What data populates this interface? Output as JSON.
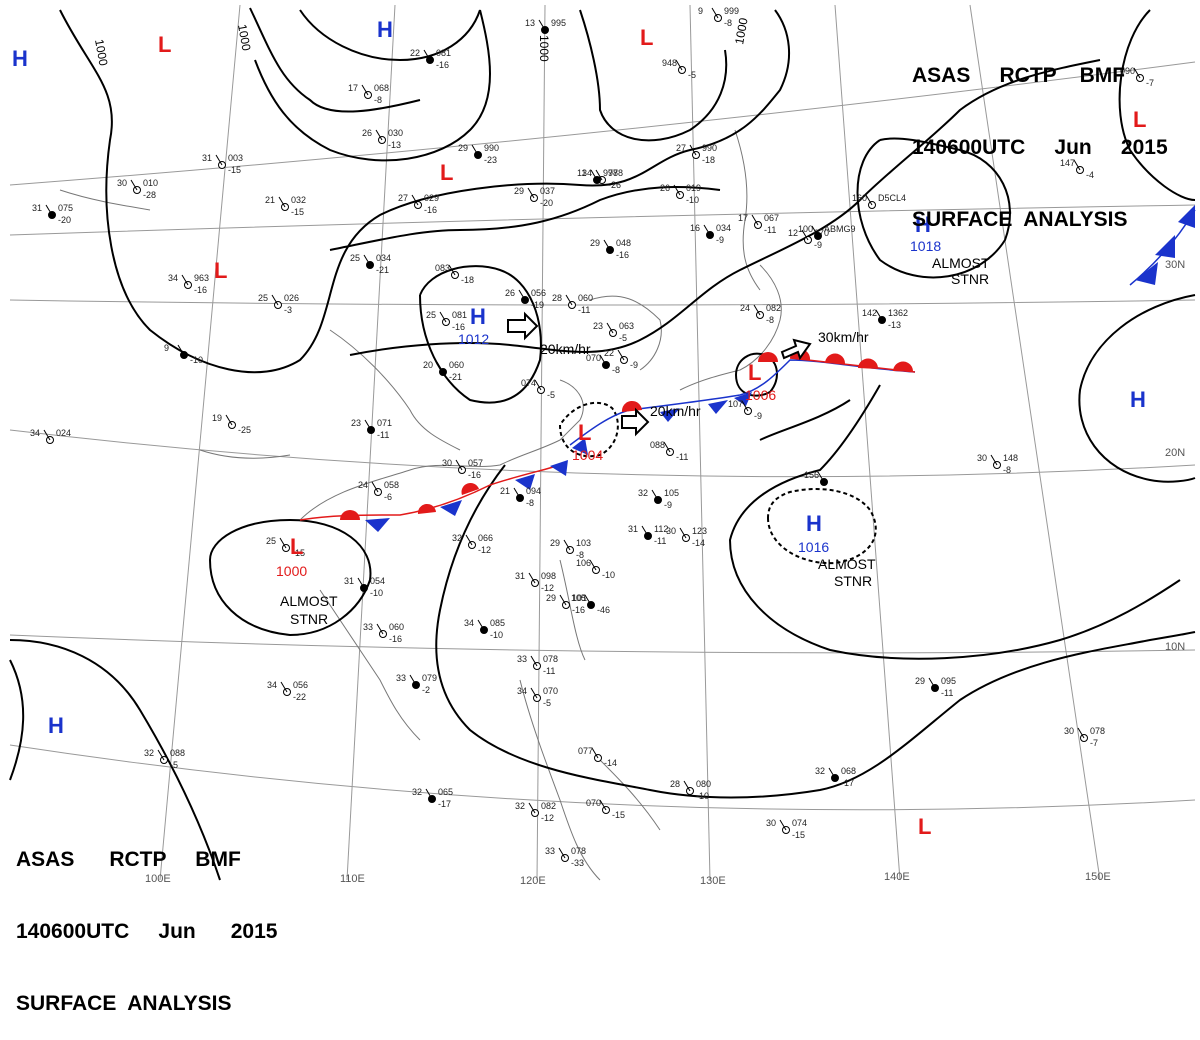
{
  "header": {
    "line1": "ASAS     RCTP    BMF",
    "line2": "140600UTC     Jun     2015",
    "line3": "SURFACE  ANALYSIS"
  },
  "footer": {
    "line1": "ASAS      RCTP     BMF",
    "line2": "140600UTC     Jun      2015",
    "line3": "SURFACE  ANALYSIS"
  },
  "colors": {
    "high": "#1a33cc",
    "low": "#e21a1a",
    "warm_front": "#e21a1a",
    "cold_front": "#1a33cc",
    "isobar": "#000000",
    "grid": "#999999",
    "coast": "#777777"
  },
  "longitude_labels": [
    "110E",
    "120E",
    "130E",
    "140E",
    "150E",
    "100E"
  ],
  "latitude_labels": [
    "30N",
    "20N",
    "10N"
  ],
  "isobar_labels": [
    "1000",
    "1000",
    "1000",
    "1000"
  ],
  "pressure_systems": [
    {
      "type": "H",
      "center": "1012"
    },
    {
      "type": "H",
      "center": "1018",
      "note1": "ALMOST",
      "note2": "STNR"
    },
    {
      "type": "H",
      "center": "1016",
      "note1": "ALMOST",
      "note2": "STNR"
    },
    {
      "type": "L",
      "center": "1000",
      "note1": "ALMOST",
      "note2": "STNR"
    },
    {
      "type": "L",
      "center": "1004"
    },
    {
      "type": "L",
      "center": "1006"
    }
  ],
  "extra_symbols": {
    "highs": [
      "H",
      "H",
      "H",
      "H",
      "H"
    ],
    "lows": [
      "L",
      "L",
      "L",
      "L",
      "L",
      "L"
    ]
  },
  "motions": [
    "20km/hr",
    "20km/hr",
    "30km/hr"
  ],
  "stations": [
    {
      "t": "22",
      "p": "081",
      "d": "-16"
    },
    {
      "t": "17",
      "p": "068",
      "d": "-8"
    },
    {
      "t": "26",
      "p": "030",
      "d": "-13"
    },
    {
      "t": "29",
      "p": "990",
      "d": "-23"
    },
    {
      "t": "31",
      "p": "003",
      "d": "-15"
    },
    {
      "t": "30",
      "p": "010",
      "d": "-28"
    },
    {
      "t": "31",
      "p": "075",
      "d": "-20"
    },
    {
      "t": "21",
      "p": "032",
      "d": "-15"
    },
    {
      "t": "27",
      "p": "029",
      "d": "-16"
    },
    {
      "t": "25",
      "p": "034",
      "d": "-21"
    },
    {
      "t": "34",
      "p": "963",
      "d": "-16"
    },
    {
      "t": "25",
      "p": "026",
      "d": "-3"
    },
    {
      "t": "9",
      "p": "",
      "d": "-10"
    },
    {
      "t": "19",
      "p": "",
      "d": "-25"
    },
    {
      "t": "34",
      "p": "024",
      "d": ""
    },
    {
      "t": "23",
      "p": "071",
      "d": "-11"
    },
    {
      "t": "29",
      "p": "037",
      "d": "-20"
    },
    {
      "t": "34",
      "p": "978",
      "d": "-26"
    },
    {
      "t": "29",
      "p": "048",
      "d": "-16"
    },
    {
      "t": "27",
      "p": "990",
      "d": "-18"
    },
    {
      "t": "26",
      "p": "019",
      "d": "-10"
    },
    {
      "t": "16",
      "p": "034",
      "d": "-9"
    },
    {
      "t": "17",
      "p": "067",
      "d": "-11"
    },
    {
      "t": "12",
      "p": "070",
      "d": "-9"
    },
    {
      "t": "100",
      "p": "ABMG9",
      "d": ""
    },
    {
      "t": "160",
      "p": "D5CL4",
      "d": ""
    },
    {
      "t": "24",
      "p": "082",
      "d": "-8"
    },
    {
      "t": "142",
      "p": "1362",
      "d": "-13"
    },
    {
      "t": "083",
      "p": "",
      "d": "-18"
    },
    {
      "t": "25",
      "p": "081",
      "d": "-16"
    },
    {
      "t": "26",
      "p": "056",
      "d": "-19"
    },
    {
      "t": "28",
      "p": "060",
      "d": "-11"
    },
    {
      "t": "23",
      "p": "063",
      "d": "-5"
    },
    {
      "t": "20",
      "p": "060",
      "d": "-21"
    },
    {
      "t": "074",
      "p": "",
      "d": "-5"
    },
    {
      "t": "22",
      "p": "",
      "d": "-9"
    },
    {
      "t": "070",
      "p": "",
      "d": "-8"
    },
    {
      "t": "30",
      "p": "057",
      "d": "-16"
    },
    {
      "t": "24",
      "p": "058",
      "d": "-6"
    },
    {
      "t": "21",
      "p": "094",
      "d": "-8"
    },
    {
      "t": "088",
      "p": "",
      "d": "-11"
    },
    {
      "t": "107",
      "p": "",
      "d": "-9"
    },
    {
      "t": "32",
      "p": "105",
      "d": "-9"
    },
    {
      "t": "32",
      "p": "066",
      "d": "-12"
    },
    {
      "t": "29",
      "p": "103",
      "d": "-8"
    },
    {
      "t": "31",
      "p": "112",
      "d": "-11"
    },
    {
      "t": "30",
      "p": "123",
      "d": "-14"
    },
    {
      "t": "106",
      "p": "",
      "d": "-10"
    },
    {
      "t": "105",
      "p": "",
      "d": "-46"
    },
    {
      "t": "31",
      "p": "098",
      "d": "-12"
    },
    {
      "t": "29",
      "p": "101",
      "d": "-16"
    },
    {
      "t": "31",
      "p": "054",
      "d": "-10"
    },
    {
      "t": "33",
      "p": "060",
      "d": "-16"
    },
    {
      "t": "25",
      "p": "",
      "d": "-15"
    },
    {
      "t": "34",
      "p": "085",
      "d": "-10"
    },
    {
      "t": "33",
      "p": "078",
      "d": "-11"
    },
    {
      "t": "34",
      "p": "070",
      "d": "-5"
    },
    {
      "t": "33",
      "p": "079",
      "d": "-2"
    },
    {
      "t": "34",
      "p": "056",
      "d": "-22"
    },
    {
      "t": "32",
      "p": "088",
      "d": "-5"
    },
    {
      "t": "32",
      "p": "065",
      "d": "-17"
    },
    {
      "t": "32",
      "p": "082",
      "d": "-12"
    },
    {
      "t": "28",
      "p": "080",
      "d": "-10"
    },
    {
      "t": "32",
      "p": "068",
      "d": "-17"
    },
    {
      "t": "30",
      "p": "074",
      "d": "-15"
    },
    {
      "t": "33",
      "p": "078",
      "d": "-33"
    },
    {
      "t": "29",
      "p": "095",
      "d": "-11"
    },
    {
      "t": "30",
      "p": "148",
      "d": "-8"
    },
    {
      "t": "30",
      "p": "078",
      "d": "-7"
    },
    {
      "t": "156",
      "p": "",
      "d": ""
    },
    {
      "t": "090",
      "p": "",
      "d": "-7"
    },
    {
      "t": "147",
      "p": "",
      "d": "-4"
    },
    {
      "t": "13",
      "p": "995",
      "d": ""
    },
    {
      "t": "9",
      "p": "999",
      "d": "-8"
    },
    {
      "t": "948",
      "p": "",
      "d": "-5"
    },
    {
      "t": "11",
      "p": "978",
      "d": ""
    },
    {
      "t": "070",
      "p": "",
      "d": "-15"
    },
    {
      "t": "077",
      "p": "",
      "d": "-14"
    }
  ]
}
